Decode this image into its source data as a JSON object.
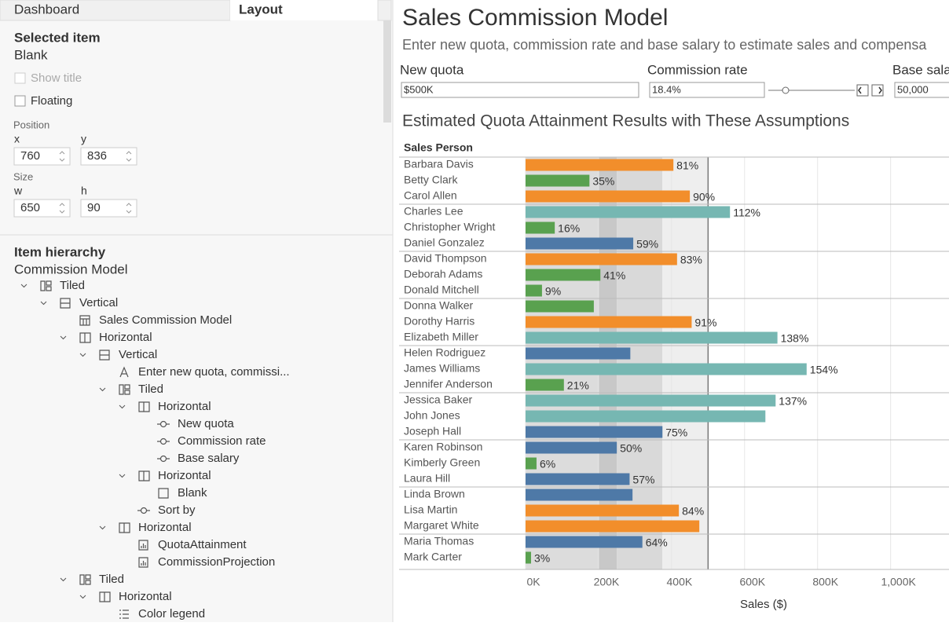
{
  "sidebar": {
    "tabs": [
      "Dashboard",
      "Layout"
    ],
    "selected_item": {
      "heading": "Selected item",
      "value": "Blank",
      "show_title": "Show title",
      "floating": "Floating"
    },
    "position": {
      "label": "Position",
      "x_label": "x",
      "x": "760",
      "y_label": "y",
      "y": "836"
    },
    "size": {
      "label": "Size",
      "w_label": "w",
      "w": "650",
      "h_label": "h",
      "h": "90"
    },
    "hierarchy": {
      "heading": "Item hierarchy",
      "root": "Commission Model",
      "nodes": [
        {
          "label": "Tiled",
          "level": 0,
          "icon": "tiled",
          "expanded": true
        },
        {
          "label": "Vertical",
          "level": 1,
          "icon": "vertical",
          "expanded": true
        },
        {
          "label": "Sales Commission Model",
          "level": 2,
          "icon": "title",
          "expanded": false
        },
        {
          "label": "Horizontal",
          "level": 2,
          "icon": "horizontal",
          "expanded": true
        },
        {
          "label": "Vertical",
          "level": 3,
          "icon": "vertical",
          "expanded": true
        },
        {
          "label": "Enter new quota, commissi...",
          "level": 4,
          "icon": "text",
          "expanded": false
        },
        {
          "label": "Tiled",
          "level": 4,
          "icon": "tiled",
          "expanded": true
        },
        {
          "label": "Horizontal",
          "level": 5,
          "icon": "horizontal",
          "expanded": true
        },
        {
          "label": "New quota",
          "level": 6,
          "icon": "parameter",
          "expanded": false
        },
        {
          "label": "Commission rate",
          "level": 6,
          "icon": "parameter",
          "expanded": false
        },
        {
          "label": "Base salary",
          "level": 6,
          "icon": "parameter",
          "expanded": false
        },
        {
          "label": "Horizontal",
          "level": 5,
          "icon": "horizontal",
          "expanded": true
        },
        {
          "label": "Blank",
          "level": 6,
          "icon": "blank",
          "expanded": false
        },
        {
          "label": "Sort by",
          "level": 5,
          "icon": "parameter",
          "expanded": false
        },
        {
          "label": "Horizontal",
          "level": 4,
          "icon": "horizontal",
          "expanded": true
        },
        {
          "label": "QuotaAttainment",
          "level": 5,
          "icon": "sheet",
          "expanded": false
        },
        {
          "label": "CommissionProjection",
          "level": 5,
          "icon": "sheet",
          "expanded": false
        },
        {
          "label": "Tiled",
          "level": 2,
          "icon": "tiled",
          "expanded": true
        },
        {
          "label": "Horizontal",
          "level": 3,
          "icon": "horizontal",
          "expanded": true
        },
        {
          "label": "Color legend",
          "level": 4,
          "icon": "legend",
          "expanded": false
        }
      ]
    }
  },
  "dashboard": {
    "title": "Sales Commission Model",
    "subtitle": "Enter new quota, commission rate and base salary to estimate sales and compensa",
    "controls": [
      {
        "label": "New quota",
        "value": "$500K"
      },
      {
        "label": "Commission rate",
        "value": "18.4%"
      },
      {
        "label": "Base sala",
        "value": "50,000"
      }
    ],
    "chart": {
      "type": "bar",
      "orientation": "horizontal",
      "title": "Estimated Quota Attainment Results with These Assumptions",
      "category_header": "Sales Person",
      "x_label": "Sales ($)",
      "categories": [
        "Barbara Davis",
        "Betty Clark",
        "Carol Allen",
        "Charles Lee",
        "Christopher Wright",
        "Daniel Gonzalez",
        "David Thompson",
        "Deborah Adams",
        "Donald Mitchell",
        "Donna Walker",
        "Dorothy Harris",
        "Elizabeth Miller",
        "Helen Rodriguez",
        "James Williams",
        "Jennifer Anderson",
        "Jessica Baker",
        "John Jones",
        "Joseph Hall",
        "Karen Robinson",
        "Kimberly Green",
        "Laura Hill",
        "Linda Brown",
        "Lisa Martin",
        "Margaret White",
        "Maria Thomas",
        "Mark Carter"
      ],
      "values": [
        405000,
        175000,
        450000,
        560000,
        80000,
        295000,
        415000,
        205000,
        45000,
        187000,
        455000,
        690000,
        287000,
        770000,
        105000,
        685000,
        657000,
        375000,
        250000,
        30000,
        285000,
        293000,
        420000,
        476000,
        320000,
        15000
      ],
      "colors": [
        "#f28e2b",
        "#59a14f",
        "#f28e2b",
        "#76b7b2",
        "#59a14f",
        "#4e79a7",
        "#f28e2b",
        "#59a14f",
        "#59a14f",
        "#59a14f",
        "#f28e2b",
        "#76b7b2",
        "#4e79a7",
        "#76b7b2",
        "#59a14f",
        "#76b7b2",
        "#76b7b2",
        "#4e79a7",
        "#4e79a7",
        "#59a14f",
        "#4e79a7",
        "#4e79a7",
        "#f28e2b",
        "#f28e2b",
        "#4e79a7",
        "#59a14f"
      ],
      "attainment_labels": [
        "81%",
        "35%",
        "90%",
        "112%",
        "16%",
        "59%",
        "83%",
        "41%",
        "9%",
        null,
        "91%",
        "138%",
        null,
        "154%",
        "21%",
        "137%",
        null,
        "75%",
        "50%",
        "6%",
        "57%",
        null,
        "84%",
        null,
        "64%",
        "3%"
      ],
      "xlim": [
        0,
        1160000
      ],
      "xticks": [
        {
          "value": 0,
          "label": "0K"
        },
        {
          "value": 200000,
          "label": "200K"
        },
        {
          "value": 400000,
          "label": "400K"
        },
        {
          "value": 600000,
          "label": "600K"
        },
        {
          "value": 800000,
          "label": "800K"
        },
        {
          "value": 1000000,
          "label": "1,000K"
        }
      ],
      "bands": [
        {
          "from": 0,
          "to": 200000,
          "color": "#dcdcdc"
        },
        {
          "from": 200000,
          "to": 250000,
          "color": "#c8c8c8"
        },
        {
          "from": 250000,
          "to": 375000,
          "color": "#d9d9d9"
        },
        {
          "from": 375000,
          "to": 500000,
          "color": "#eeeeee"
        }
      ],
      "reference_line": 500000
    }
  }
}
